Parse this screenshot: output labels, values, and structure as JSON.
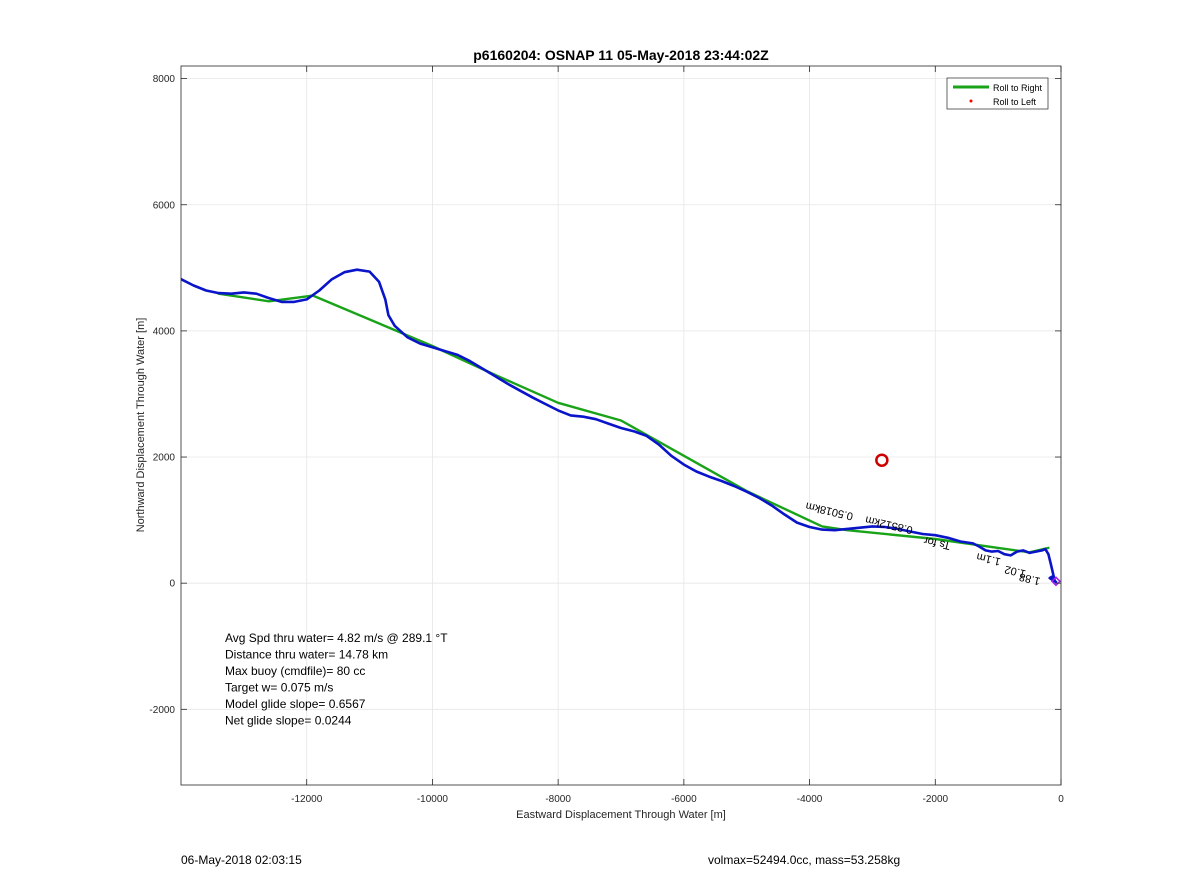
{
  "chart_data": {
    "type": "line",
    "title": "p6160204: OSNAP 11 05-May-2018 23:44:02Z",
    "xlabel": "Eastward Displacement Through Water [m]",
    "ylabel": "Northward Displacement Through Water [m]",
    "xlim": [
      -14000,
      0
    ],
    "ylim": [
      -3200,
      8200
    ],
    "xticks": [
      -12000,
      -10000,
      -8000,
      -6000,
      -4000,
      -2000,
      0
    ],
    "xtick_labels": [
      "-12000",
      "-10000",
      "-8000",
      "-6000",
      "-4000",
      "-2000",
      "0"
    ],
    "yticks": [
      -2000,
      0,
      2000,
      4000,
      6000,
      8000
    ],
    "ytick_labels": [
      "-2000",
      "0",
      "2000",
      "4000",
      "6000",
      "8000"
    ],
    "grid": true,
    "legend": {
      "location": "top-right",
      "entries": [
        {
          "label": "Roll to Right",
          "color": "#19a319",
          "marker": "line"
        },
        {
          "label": "Roll to Left",
          "color": "#ff0000",
          "marker": "dot"
        }
      ]
    },
    "series": [
      {
        "color": "#0a14c8",
        "style": "line",
        "x": [
          -14000,
          -13800,
          -13600,
          -13400,
          -13200,
          -13000,
          -12800,
          -12600,
          -12400,
          -12200,
          -12000,
          -11800,
          -11600,
          -11400,
          -11200,
          -11000,
          -10850,
          -10750,
          -10700,
          -10600,
          -10400,
          -10200,
          -10000,
          -9800,
          -9600,
          -9400,
          -9200,
          -9000,
          -8800,
          -8600,
          -8400,
          -8200,
          -8000,
          -7800,
          -7600,
          -7400,
          -7200,
          -7000,
          -6800,
          -6600,
          -6400,
          -6200,
          -6000,
          -5800,
          -5600,
          -5400,
          -5200,
          -5000,
          -4800,
          -4600,
          -4400,
          -4200,
          -4000,
          -3800,
          -3600,
          -3400,
          -3200,
          -3000,
          -2800,
          -2600,
          -2400,
          -2200,
          -2000,
          -1800,
          -1600,
          -1400,
          -1300,
          -1200,
          -1100,
          -1000,
          -900,
          -800,
          -700,
          -600,
          -500,
          -400,
          -300,
          -250,
          -200,
          -160,
          -120,
          -100,
          -120,
          -150,
          -180,
          -120,
          -80,
          -100
        ],
        "y": [
          4820,
          4720,
          4640,
          4600,
          4590,
          4610,
          4590,
          4520,
          4460,
          4460,
          4500,
          4640,
          4820,
          4930,
          4970,
          4940,
          4780,
          4500,
          4250,
          4080,
          3900,
          3800,
          3740,
          3680,
          3620,
          3520,
          3400,
          3280,
          3160,
          3050,
          2940,
          2840,
          2740,
          2660,
          2640,
          2600,
          2530,
          2460,
          2410,
          2340,
          2200,
          2020,
          1880,
          1770,
          1690,
          1620,
          1540,
          1450,
          1350,
          1230,
          1090,
          960,
          890,
          850,
          840,
          860,
          880,
          900,
          890,
          860,
          820,
          780,
          760,
          720,
          660,
          630,
          580,
          520,
          500,
          510,
          460,
          440,
          500,
          520,
          480,
          500,
          520,
          540,
          460,
          300,
          120,
          40,
          60,
          100,
          80,
          40,
          20,
          30
        ],
        "points": []
      },
      {
        "name": "Roll to Right",
        "color": "#19a319",
        "style": "line",
        "x": [
          -13400,
          -12600,
          -11900,
          -10000,
          -9000,
          -8000,
          -7000,
          -6000,
          -5000,
          -3800,
          -3400,
          -2000,
          -1000,
          -500,
          -200
        ],
        "y": [
          4590,
          4470,
          4560,
          3760,
          3300,
          2860,
          2580,
          2020,
          1460,
          900,
          840,
          700,
          560,
          490,
          560
        ],
        "points": []
      },
      {
        "name": "Roll to Left",
        "color": "#ff0000",
        "style": "dot",
        "x": [],
        "y": [],
        "points": []
      }
    ],
    "markers": [
      {
        "name": "red-circle",
        "x": -2850,
        "y": 1950,
        "color": "#cc0000"
      },
      {
        "name": "end-diamond",
        "x": -80,
        "y": 30,
        "color": "#a020f0"
      }
    ],
    "rotated_labels": [
      {
        "text": "0.5018km",
        "x": -3300,
        "y": 1110,
        "angle": 13
      },
      {
        "text": "0.8512km",
        "x": -2350,
        "y": 890,
        "angle": 13
      },
      {
        "text": "Ts for",
        "x": -1750,
        "y": 640,
        "angle": 13
      },
      {
        "text": "1.1m",
        "x": -950,
        "y": 390,
        "angle": 13
      },
      {
        "text": "1.02",
        "x": -550,
        "y": 200,
        "angle": 13
      },
      {
        "text": "1.88",
        "x": -320,
        "y": 80,
        "angle": 13
      }
    ],
    "annotations": [
      "Avg Spd thru water=  4.82 m/s @ 289.1 °T",
      "Distance thru water= 14.78 km",
      "Max buoy (cmdfile)= 80 cc",
      "Target w= 0.075 m/s",
      "Model glide slope= 0.6567",
      "Net glide slope= 0.0244"
    ]
  },
  "footer": {
    "left": "06-May-2018 02:03:15",
    "right": "volmax=52494.0cc, mass=53.258kg"
  }
}
